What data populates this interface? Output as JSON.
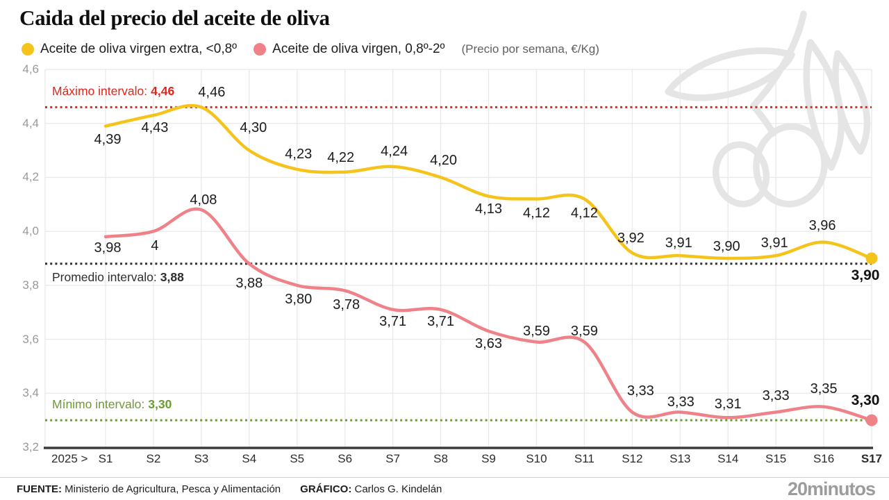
{
  "title": "Caida del precio del aceite de oliva",
  "legend": {
    "series1": {
      "label": "Aceite de oliva virgen extra, <0,8º",
      "color": "#F5C41C"
    },
    "series2": {
      "label": "Aceite de oliva virgen, 0,8º-2º",
      "color": "#EF8289"
    },
    "note": "(Precio por semana, €/Kg)"
  },
  "chart_data": {
    "type": "line",
    "title": "Caida del precio del aceite de oliva",
    "unit_note": "(Precio por semana, €/Kg)",
    "x_prefix": "2025 >",
    "categories": [
      "S1",
      "S2",
      "S3",
      "S4",
      "S5",
      "S6",
      "S7",
      "S8",
      "S9",
      "S10",
      "S11",
      "S12",
      "S13",
      "S14",
      "S15",
      "S16",
      "S17"
    ],
    "ylim": [
      3.2,
      4.6
    ],
    "yticks": [
      "4,6",
      "4,4",
      "4,2",
      "4,0",
      "3,8",
      "3,6",
      "3,4",
      "3,2"
    ],
    "ytick_values": [
      4.6,
      4.4,
      4.2,
      4.0,
      3.8,
      3.6,
      3.4,
      3.2
    ],
    "grid": true,
    "legend_position": "top",
    "series": [
      {
        "key": "extra",
        "name": "Aceite de oliva virgen extra, <0,8º",
        "color": "#F5C41C",
        "values": [
          4.39,
          4.43,
          4.46,
          4.3,
          4.23,
          4.22,
          4.24,
          4.2,
          4.13,
          4.12,
          4.12,
          3.92,
          3.91,
          3.9,
          3.91,
          3.96,
          3.9
        ],
        "point_labels": [
          "4,39",
          "4,43",
          "4,46",
          "4,30",
          "4,23",
          "4,22",
          "4,24",
          "4,20",
          "4,13",
          "4,12",
          "4,12",
          "3,92",
          "3,91",
          "3,90",
          "3,91",
          "3,96",
          "3,90"
        ],
        "end_dot": true
      },
      {
        "key": "virgen",
        "name": "Aceite de oliva virgen, 0,8º-2º",
        "color": "#EF8289",
        "values": [
          3.98,
          4.0,
          4.08,
          3.88,
          3.8,
          3.78,
          3.71,
          3.71,
          3.63,
          3.59,
          3.59,
          3.33,
          3.33,
          3.31,
          3.33,
          3.35,
          3.3
        ],
        "point_labels": [
          "3,98",
          "4",
          "4,08",
          "3,88",
          "3,80",
          "3,78",
          "3,71",
          "3,71",
          "3,63",
          "3,59",
          "3,59",
          "3,33",
          "3,33",
          "3,31",
          "3,33",
          "3,35",
          "3,30"
        ],
        "end_dot": true
      }
    ],
    "reference_lines": [
      {
        "name": "maximo",
        "label": "Máximo intervalo:",
        "value_label": "4,46",
        "value": 4.46,
        "color": "#E2241A",
        "label_side": "above"
      },
      {
        "name": "promedio",
        "label": "Promedio intervalo:",
        "value_label": "3,88",
        "value": 3.88,
        "color": "#2E2E2E",
        "label_side": "below"
      },
      {
        "name": "minimo",
        "label": "Mínimo intervalo:",
        "value_label": "3,30",
        "value": 3.3,
        "color": "#6E9A34",
        "label_side": "above"
      }
    ],
    "label_offsets": {
      "extra": [
        [
          3,
          19
        ],
        [
          2,
          18
        ],
        [
          15,
          -21
        ],
        [
          6,
          -33
        ],
        [
          2,
          -22
        ],
        [
          -6,
          -21
        ],
        [
          2,
          -22
        ],
        [
          4,
          -24
        ],
        [
          0,
          18
        ],
        [
          0,
          20
        ],
        [
          0,
          20
        ],
        [
          -2,
          -21
        ],
        [
          -2,
          -18
        ],
        [
          -2,
          -17
        ],
        [
          -2,
          -18
        ],
        [
          -2,
          -24
        ],
        [
          -9,
          25
        ]
      ],
      "virgen": [
        [
          3,
          16
        ],
        [
          2,
          21
        ],
        [
          3,
          -14
        ],
        [
          0,
          28
        ],
        [
          2,
          20
        ],
        [
          2,
          20
        ],
        [
          0,
          17
        ],
        [
          0,
          17
        ],
        [
          0,
          18
        ],
        [
          0,
          -15
        ],
        [
          0,
          -15
        ],
        [
          12,
          -30
        ],
        [
          1,
          -14
        ],
        [
          0,
          -19
        ],
        [
          0,
          -23
        ],
        [
          0,
          -26
        ],
        [
          -9,
          -28
        ]
      ]
    }
  },
  "footer": {
    "source_label": "FUENTE:",
    "source": "Ministerio de Agricultura, Pesca y Alimentación",
    "credit_label": "GRÁFICO:",
    "credit": "Carlos G. Kindelán",
    "brand": "20minutos"
  }
}
